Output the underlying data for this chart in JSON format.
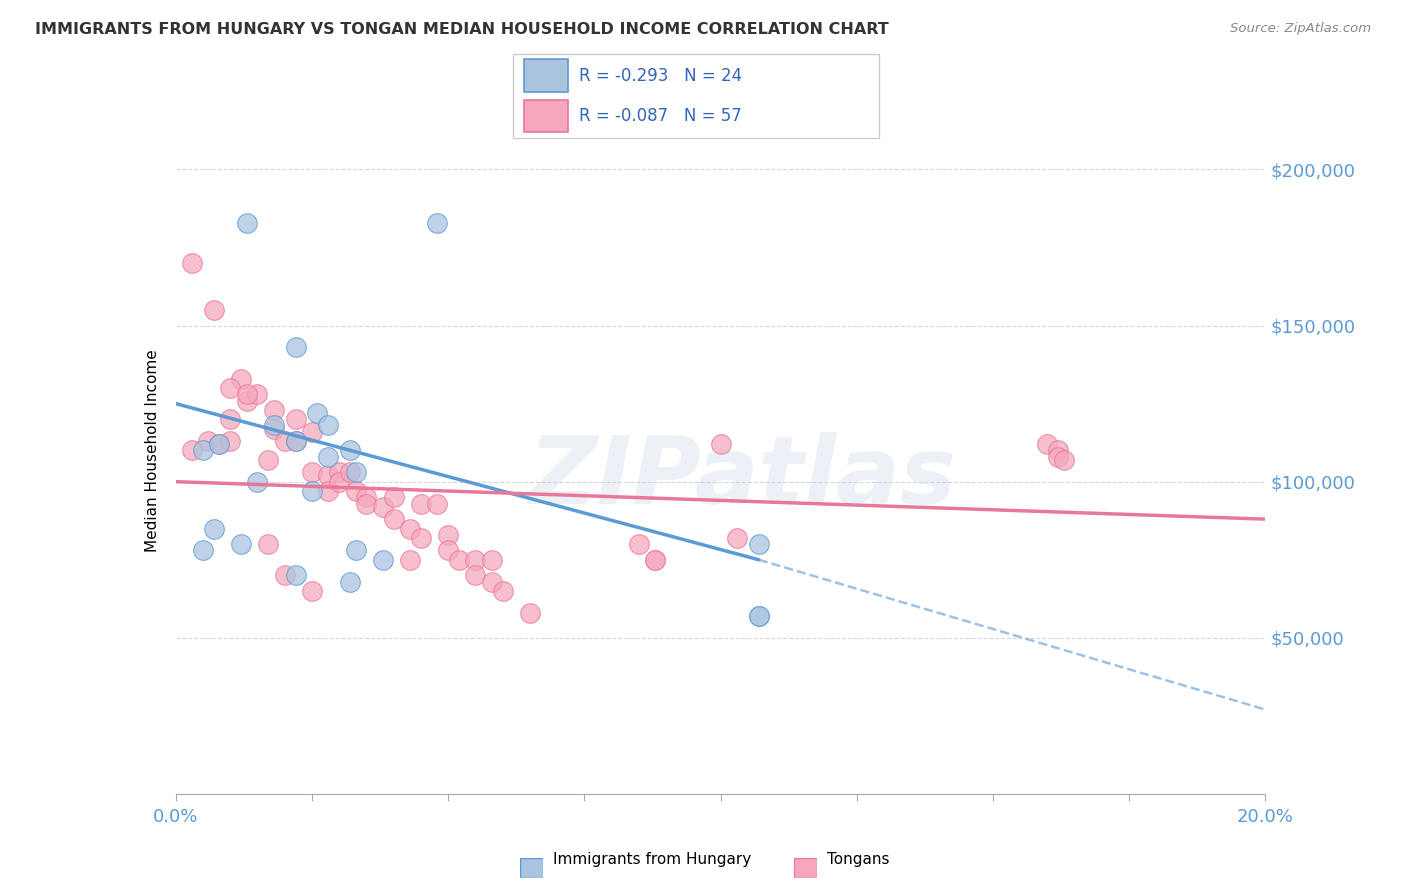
{
  "title": "IMMIGRANTS FROM HUNGARY VS TONGAN MEDIAN HOUSEHOLD INCOME CORRELATION CHART",
  "source": "Source: ZipAtlas.com",
  "ylabel": "Median Household Income",
  "ytick_labels": [
    "$50,000",
    "$100,000",
    "$150,000",
    "$200,000"
  ],
  "ytick_values": [
    50000,
    100000,
    150000,
    200000
  ],
  "ylim": [
    0,
    220000
  ],
  "xlim": [
    0.0,
    0.2
  ],
  "legend_entry1": "R = -0.293   N = 24",
  "legend_entry2": "R = -0.087   N = 57",
  "legend_label1": "Immigrants from Hungary",
  "legend_label2": "Tongans",
  "watermark": "ZIPatlas",
  "hungary_color": "#aac4e0",
  "tongan_color": "#f5a8bc",
  "hungary_line_color": "#5b9bd5",
  "tongan_line_color": "#e8789a",
  "hungary_line": {
    "x0": 0.0,
    "y0": 125000,
    "x1": 0.107,
    "y1": 75000,
    "xdash0": 0.107,
    "ydash0": 75000,
    "xdash1": 0.2,
    "ydash1": 27000
  },
  "tongan_line": {
    "x0": 0.0,
    "y0": 100000,
    "x1": 0.2,
    "y1": 88000
  },
  "hungary_scatter": {
    "x": [
      0.005,
      0.013,
      0.048,
      0.008,
      0.007,
      0.022,
      0.026,
      0.028,
      0.032,
      0.018,
      0.022,
      0.028,
      0.033,
      0.015,
      0.025,
      0.033,
      0.038,
      0.012,
      0.022,
      0.032,
      0.107,
      0.107,
      0.107,
      0.005
    ],
    "y": [
      110000,
      183000,
      183000,
      112000,
      85000,
      143000,
      122000,
      118000,
      110000,
      118000,
      113000,
      108000,
      103000,
      100000,
      97000,
      78000,
      75000,
      80000,
      70000,
      68000,
      80000,
      57000,
      57000,
      78000
    ]
  },
  "tongan_scatter": {
    "x": [
      0.003,
      0.006,
      0.008,
      0.01,
      0.01,
      0.012,
      0.013,
      0.015,
      0.017,
      0.018,
      0.018,
      0.02,
      0.022,
      0.022,
      0.025,
      0.025,
      0.028,
      0.028,
      0.03,
      0.03,
      0.032,
      0.033,
      0.035,
      0.035,
      0.038,
      0.04,
      0.04,
      0.043,
      0.043,
      0.045,
      0.045,
      0.048,
      0.05,
      0.05,
      0.052,
      0.055,
      0.055,
      0.058,
      0.06,
      0.065,
      0.003,
      0.007,
      0.01,
      0.013,
      0.017,
      0.02,
      0.025,
      0.085,
      0.088,
      0.1,
      0.103,
      0.16,
      0.162,
      0.162,
      0.163,
      0.058,
      0.088
    ],
    "y": [
      110000,
      113000,
      112000,
      120000,
      113000,
      133000,
      126000,
      128000,
      107000,
      123000,
      117000,
      113000,
      120000,
      113000,
      116000,
      103000,
      102000,
      97000,
      103000,
      100000,
      103000,
      97000,
      95000,
      93000,
      92000,
      95000,
      88000,
      85000,
      75000,
      93000,
      82000,
      93000,
      83000,
      78000,
      75000,
      75000,
      70000,
      68000,
      65000,
      58000,
      170000,
      155000,
      130000,
      128000,
      80000,
      70000,
      65000,
      80000,
      75000,
      112000,
      82000,
      112000,
      110000,
      108000,
      107000,
      75000,
      75000
    ]
  }
}
